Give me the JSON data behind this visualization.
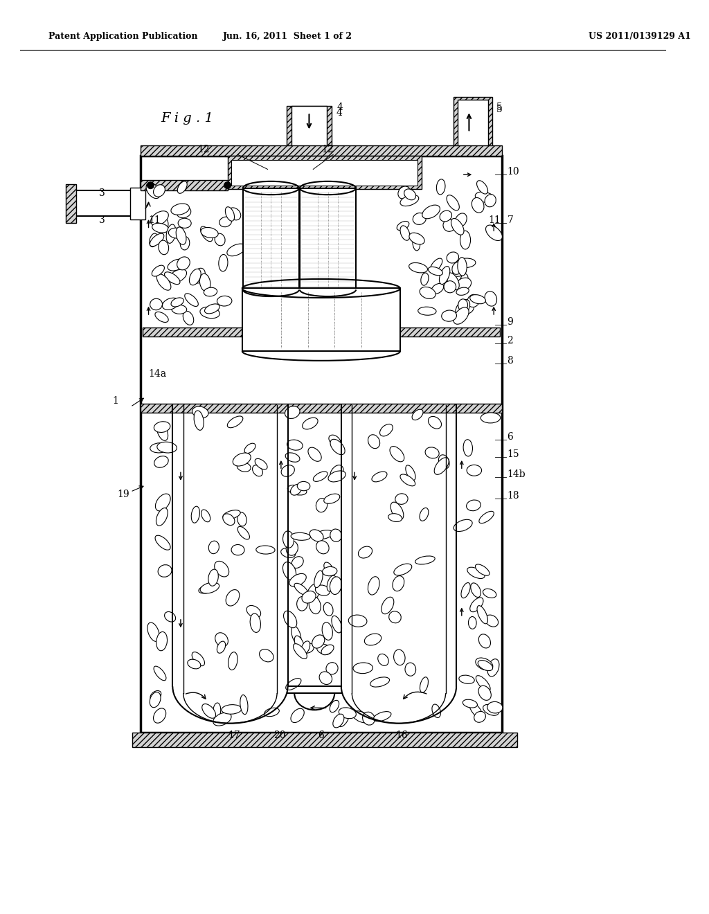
{
  "header_left": "Patent Application Publication",
  "header_center": "Jun. 16, 2011  Sheet 1 of 2",
  "header_right": "US 2011/0139129 A1",
  "bg_color": "#ffffff",
  "line_color": "#000000",
  "fig_title": "F i g . 1"
}
